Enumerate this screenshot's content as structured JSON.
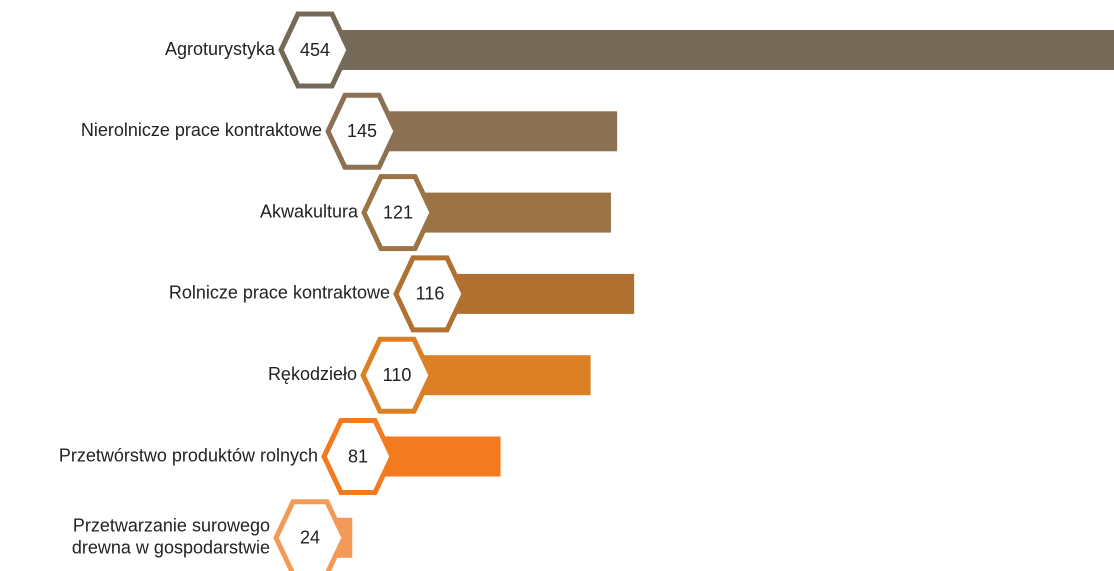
{
  "chart_data": {
    "type": "bar",
    "categories": [
      "Agroturystyka",
      "Nierolnicze prace kontraktowe",
      "Akwakultura",
      "Rolnicze prace kontraktowe",
      "Rękodzieło",
      "Przetwórstwo produktów rolnych",
      [
        "Przetwarzanie surowego",
        "drewna w gospodarstwie"
      ]
    ],
    "values": [
      454,
      145,
      121,
      116,
      110,
      81,
      24
    ],
    "colors": [
      "#756a58",
      "#8b7152",
      "#9a7445",
      "#b07130",
      "#dc8026",
      "#f47a20",
      "#f49a57"
    ]
  }
}
